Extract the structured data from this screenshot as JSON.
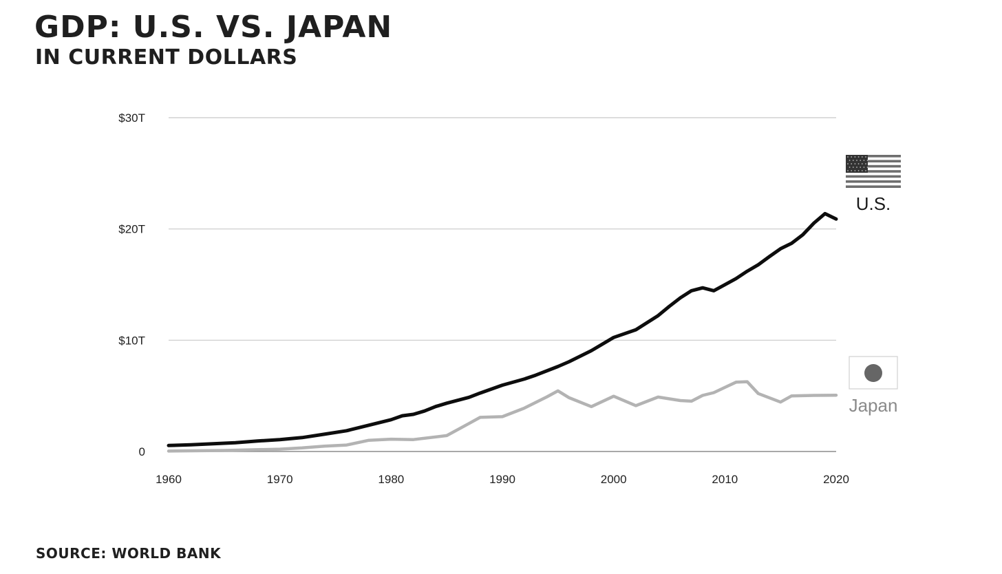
{
  "header": {
    "title": "GDP: U.S. VS. JAPAN",
    "subtitle": "IN CURRENT DOLLARS"
  },
  "footer": {
    "source": "SOURCE: WORLD BANK"
  },
  "colors": {
    "us_line": "#0d0d0d",
    "japan_line": "#b3b3b3",
    "grid": "#c8c8c8",
    "axis": "#8c8c8c",
    "us_label": "#1a1a1a",
    "japan_label": "#8a8a8a",
    "flag_dark": "#333333",
    "flag_stripe": "#6e6e6e",
    "japan_disc": "#666666",
    "japan_flag_border": "#d0d0d0"
  },
  "chart_data": {
    "type": "line",
    "xlim": [
      1960,
      2020
    ],
    "ylim": [
      0,
      30
    ],
    "x_ticks": [
      1960,
      1970,
      1980,
      1990,
      2000,
      2010,
      2020
    ],
    "x_tick_labels": [
      "1960",
      "1970",
      "1980",
      "1990",
      "2000",
      "2010",
      "2020"
    ],
    "y_ticks": [
      0,
      10,
      20,
      30
    ],
    "y_tick_labels": [
      "0",
      "$10T",
      "$20T",
      "$30T"
    ],
    "grid": true,
    "series": [
      {
        "name": "U.S.",
        "icon": "us-flag-icon",
        "color_key": "us_line",
        "x": [
          1960,
          1962,
          1964,
          1966,
          1968,
          1970,
          1972,
          1974,
          1976,
          1978,
          1980,
          1981,
          1982,
          1983,
          1984,
          1985,
          1987,
          1988,
          1990,
          1992,
          1993,
          1995,
          1996,
          1998,
          2000,
          2002,
          2004,
          2005,
          2006,
          2007,
          2008,
          2009,
          2010,
          2011,
          2012,
          2013,
          2014,
          2015,
          2016,
          2017,
          2018,
          2019,
          2020
        ],
        "y": [
          0.54,
          0.6,
          0.69,
          0.79,
          0.94,
          1.07,
          1.25,
          1.55,
          1.87,
          2.36,
          2.86,
          3.21,
          3.34,
          3.64,
          4.04,
          4.34,
          4.87,
          5.25,
          5.96,
          6.52,
          6.86,
          7.64,
          8.07,
          9.06,
          10.25,
          10.94,
          12.21,
          13.04,
          13.81,
          14.45,
          14.71,
          14.45,
          14.99,
          15.54,
          16.2,
          16.78,
          17.52,
          18.22,
          18.71,
          19.48,
          20.53,
          21.38,
          20.89
        ]
      },
      {
        "name": "Japan",
        "icon": "japan-flag-icon",
        "color_key": "japan_line",
        "x": [
          1960,
          1965,
          1970,
          1972,
          1974,
          1976,
          1978,
          1980,
          1982,
          1985,
          1987,
          1988,
          1990,
          1992,
          1994,
          1995,
          1996,
          1998,
          2000,
          2002,
          2004,
          2006,
          2007,
          2008,
          2009,
          2010,
          2011,
          2012,
          2013,
          2015,
          2016,
          2018,
          2020
        ],
        "y": [
          0.04,
          0.09,
          0.21,
          0.32,
          0.48,
          0.58,
          1.01,
          1.11,
          1.07,
          1.43,
          2.52,
          3.07,
          3.13,
          3.91,
          4.91,
          5.45,
          4.83,
          4.03,
          4.97,
          4.12,
          4.89,
          4.58,
          4.52,
          5.04,
          5.29,
          5.76,
          6.23,
          6.27,
          5.21,
          4.44,
          5.0,
          5.04,
          5.06
        ]
      }
    ]
  }
}
